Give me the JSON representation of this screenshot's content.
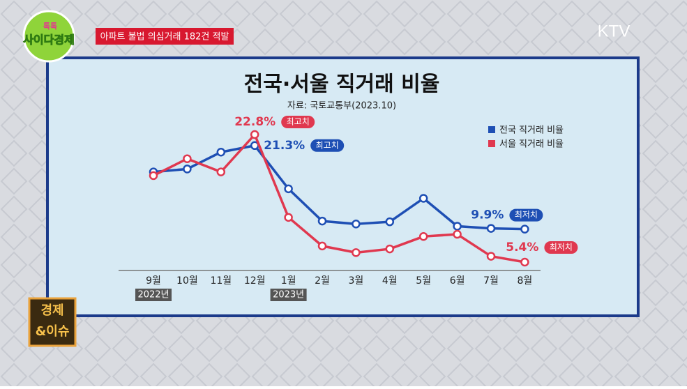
{
  "header": {
    "logo_top": "톡톡",
    "logo_main": "사이다경제",
    "headline": "아파트 불법 의심거래 182건 적발",
    "channel": "KTV",
    "corner_badge_top": "경제",
    "corner_badge_bottom": "&이슈"
  },
  "chart_data": {
    "type": "line",
    "title": "전국·서울 직거래 비율",
    "subtitle": "자료: 국토교통부(2023.10)",
    "categories": [
      "9월",
      "10월",
      "11월",
      "12월",
      "1월",
      "2월",
      "3월",
      "4월",
      "5월",
      "6월",
      "7월",
      "8월"
    ],
    "year_labels": [
      "2022년",
      null,
      null,
      null,
      "2023년",
      null,
      null,
      null,
      null,
      null,
      null,
      null
    ],
    "series": [
      {
        "name": "전국 직거래 비율",
        "color": "#1e4fb4",
        "values": [
          17.7,
          18.1,
          20.4,
          21.3,
          15.4,
          11.0,
          10.6,
          10.9,
          14.1,
          10.3,
          10.0,
          9.9
        ],
        "value_labels": [
          null,
          null,
          null,
          "21.3%",
          null,
          null,
          null,
          null,
          null,
          null,
          null,
          "9.9%"
        ],
        "notes": [
          null,
          null,
          null,
          "최고치",
          null,
          null,
          null,
          null,
          null,
          null,
          null,
          "최저치"
        ]
      },
      {
        "name": "서울 직거래 비율",
        "color": "#e0384f",
        "values": [
          17.2,
          19.5,
          17.7,
          22.8,
          11.5,
          7.6,
          6.7,
          7.2,
          8.9,
          9.2,
          6.2,
          5.4
        ],
        "value_labels": [
          null,
          null,
          null,
          "22.8%",
          null,
          null,
          null,
          null,
          null,
          null,
          null,
          "5.4%"
        ],
        "notes": [
          null,
          null,
          null,
          "최고치",
          null,
          null,
          null,
          null,
          null,
          null,
          null,
          "최저치"
        ]
      }
    ],
    "legend": "upper right"
  }
}
